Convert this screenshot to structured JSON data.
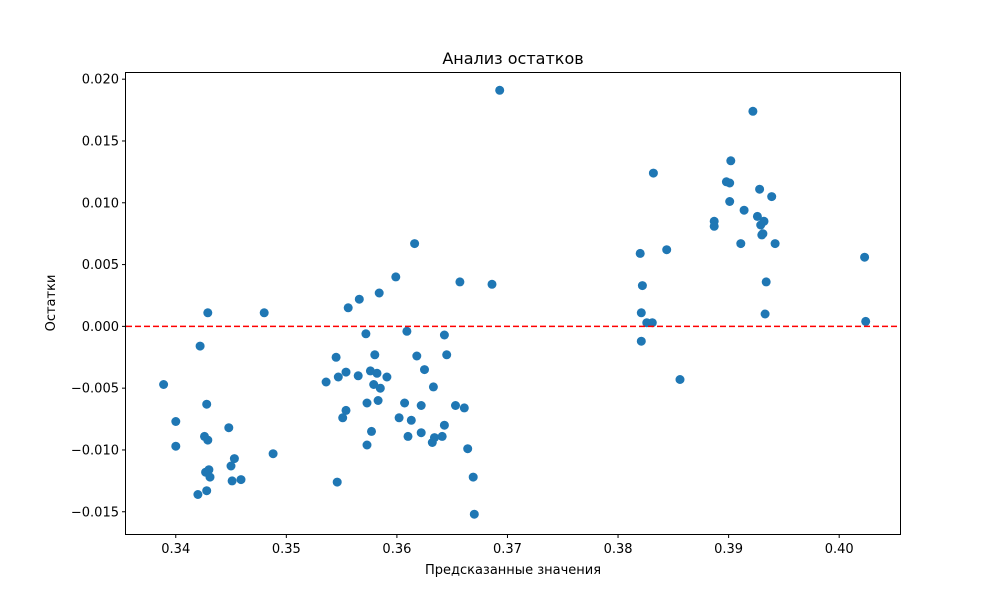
{
  "chart_data": {
    "type": "scatter",
    "title": "Анализ остатков",
    "xlabel": "Предсказанные значения",
    "ylabel": "Остатки",
    "xlim": [
      0.3355,
      0.4055
    ],
    "ylim": [
      -0.0168,
      0.0205
    ],
    "xticks": [
      "0.34",
      "0.35",
      "0.36",
      "0.37",
      "0.38",
      "0.39",
      "0.40"
    ],
    "xtick_values": [
      0.34,
      0.35,
      0.36,
      0.37,
      0.38,
      0.39,
      0.4
    ],
    "yticks": [
      "−0.015",
      "−0.010",
      "−0.005",
      "0.000",
      "0.005",
      "0.010",
      "0.015",
      "0.020"
    ],
    "ytick_values": [
      -0.015,
      -0.01,
      -0.005,
      0.0,
      0.005,
      0.01,
      0.015,
      0.02
    ],
    "grid": false,
    "point_color": "#1f77b4",
    "reference_line": {
      "y": 0,
      "color": "#ff0000",
      "style": "dashed"
    },
    "points": [
      [
        0.3389,
        -0.0047
      ],
      [
        0.34,
        -0.0077
      ],
      [
        0.34,
        -0.0097
      ],
      [
        0.342,
        -0.0136
      ],
      [
        0.3422,
        -0.0016
      ],
      [
        0.3426,
        -0.0089
      ],
      [
        0.3427,
        -0.0118
      ],
      [
        0.3428,
        -0.0063
      ],
      [
        0.3428,
        -0.0133
      ],
      [
        0.3429,
        0.0011
      ],
      [
        0.3429,
        -0.0092
      ],
      [
        0.343,
        -0.0116
      ],
      [
        0.3431,
        -0.0122
      ],
      [
        0.3448,
        -0.0082
      ],
      [
        0.345,
        -0.0113
      ],
      [
        0.3451,
        -0.0125
      ],
      [
        0.3453,
        -0.0107
      ],
      [
        0.3459,
        -0.0124
      ],
      [
        0.348,
        0.0011
      ],
      [
        0.3488,
        -0.0103
      ],
      [
        0.3536,
        -0.0045
      ],
      [
        0.3545,
        -0.0025
      ],
      [
        0.3546,
        -0.0126
      ],
      [
        0.3547,
        -0.0041
      ],
      [
        0.3551,
        -0.0074
      ],
      [
        0.3554,
        -0.0037
      ],
      [
        0.3554,
        -0.0068
      ],
      [
        0.3556,
        0.0015
      ],
      [
        0.3565,
        -0.004
      ],
      [
        0.3566,
        0.0022
      ],
      [
        0.3572,
        -0.0006
      ],
      [
        0.3573,
        -0.0062
      ],
      [
        0.3573,
        -0.0096
      ],
      [
        0.3576,
        -0.0036
      ],
      [
        0.3577,
        -0.0085
      ],
      [
        0.3579,
        -0.0047
      ],
      [
        0.358,
        -0.0023
      ],
      [
        0.3582,
        -0.0038
      ],
      [
        0.3583,
        -0.006
      ],
      [
        0.3584,
        0.0027
      ],
      [
        0.3585,
        -0.005
      ],
      [
        0.3591,
        -0.0041
      ],
      [
        0.3599,
        0.004
      ],
      [
        0.3602,
        -0.0074
      ],
      [
        0.3607,
        -0.0062
      ],
      [
        0.3609,
        -0.0004
      ],
      [
        0.361,
        -0.0089
      ],
      [
        0.3613,
        -0.0076
      ],
      [
        0.3616,
        0.0067
      ],
      [
        0.3618,
        -0.0024
      ],
      [
        0.3622,
        -0.0064
      ],
      [
        0.3622,
        -0.0086
      ],
      [
        0.3625,
        -0.0035
      ],
      [
        0.3632,
        -0.0094
      ],
      [
        0.3633,
        -0.0049
      ],
      [
        0.3634,
        -0.009
      ],
      [
        0.3641,
        -0.0089
      ],
      [
        0.3643,
        -0.0007
      ],
      [
        0.3643,
        -0.008
      ],
      [
        0.3645,
        -0.0023
      ],
      [
        0.3653,
        -0.0064
      ],
      [
        0.3657,
        0.0036
      ],
      [
        0.3661,
        -0.0066
      ],
      [
        0.3664,
        -0.0099
      ],
      [
        0.3669,
        -0.0122
      ],
      [
        0.367,
        -0.0152
      ],
      [
        0.3686,
        0.0034
      ],
      [
        0.3693,
        0.0191
      ],
      [
        0.382,
        0.0059
      ],
      [
        0.3821,
        -0.0012
      ],
      [
        0.3821,
        0.0011
      ],
      [
        0.3822,
        0.0033
      ],
      [
        0.3826,
        0.0003
      ],
      [
        0.3831,
        0.0003
      ],
      [
        0.3832,
        0.0124
      ],
      [
        0.3844,
        0.0062
      ],
      [
        0.3856,
        -0.0043
      ],
      [
        0.3887,
        0.0085
      ],
      [
        0.3887,
        0.0081
      ],
      [
        0.3898,
        0.0117
      ],
      [
        0.3901,
        0.0116
      ],
      [
        0.3901,
        0.0101
      ],
      [
        0.3902,
        0.0134
      ],
      [
        0.3911,
        0.0067
      ],
      [
        0.3914,
        0.0094
      ],
      [
        0.3922,
        0.0174
      ],
      [
        0.3926,
        0.0089
      ],
      [
        0.3928,
        0.0111
      ],
      [
        0.3929,
        0.0082
      ],
      [
        0.393,
        0.0074
      ],
      [
        0.3931,
        0.0075
      ],
      [
        0.3932,
        0.0085
      ],
      [
        0.3933,
        0.001
      ],
      [
        0.3934,
        0.0036
      ],
      [
        0.3939,
        0.0105
      ],
      [
        0.3942,
        0.0067
      ],
      [
        0.4023,
        0.0056
      ],
      [
        0.4024,
        0.0004
      ]
    ]
  }
}
